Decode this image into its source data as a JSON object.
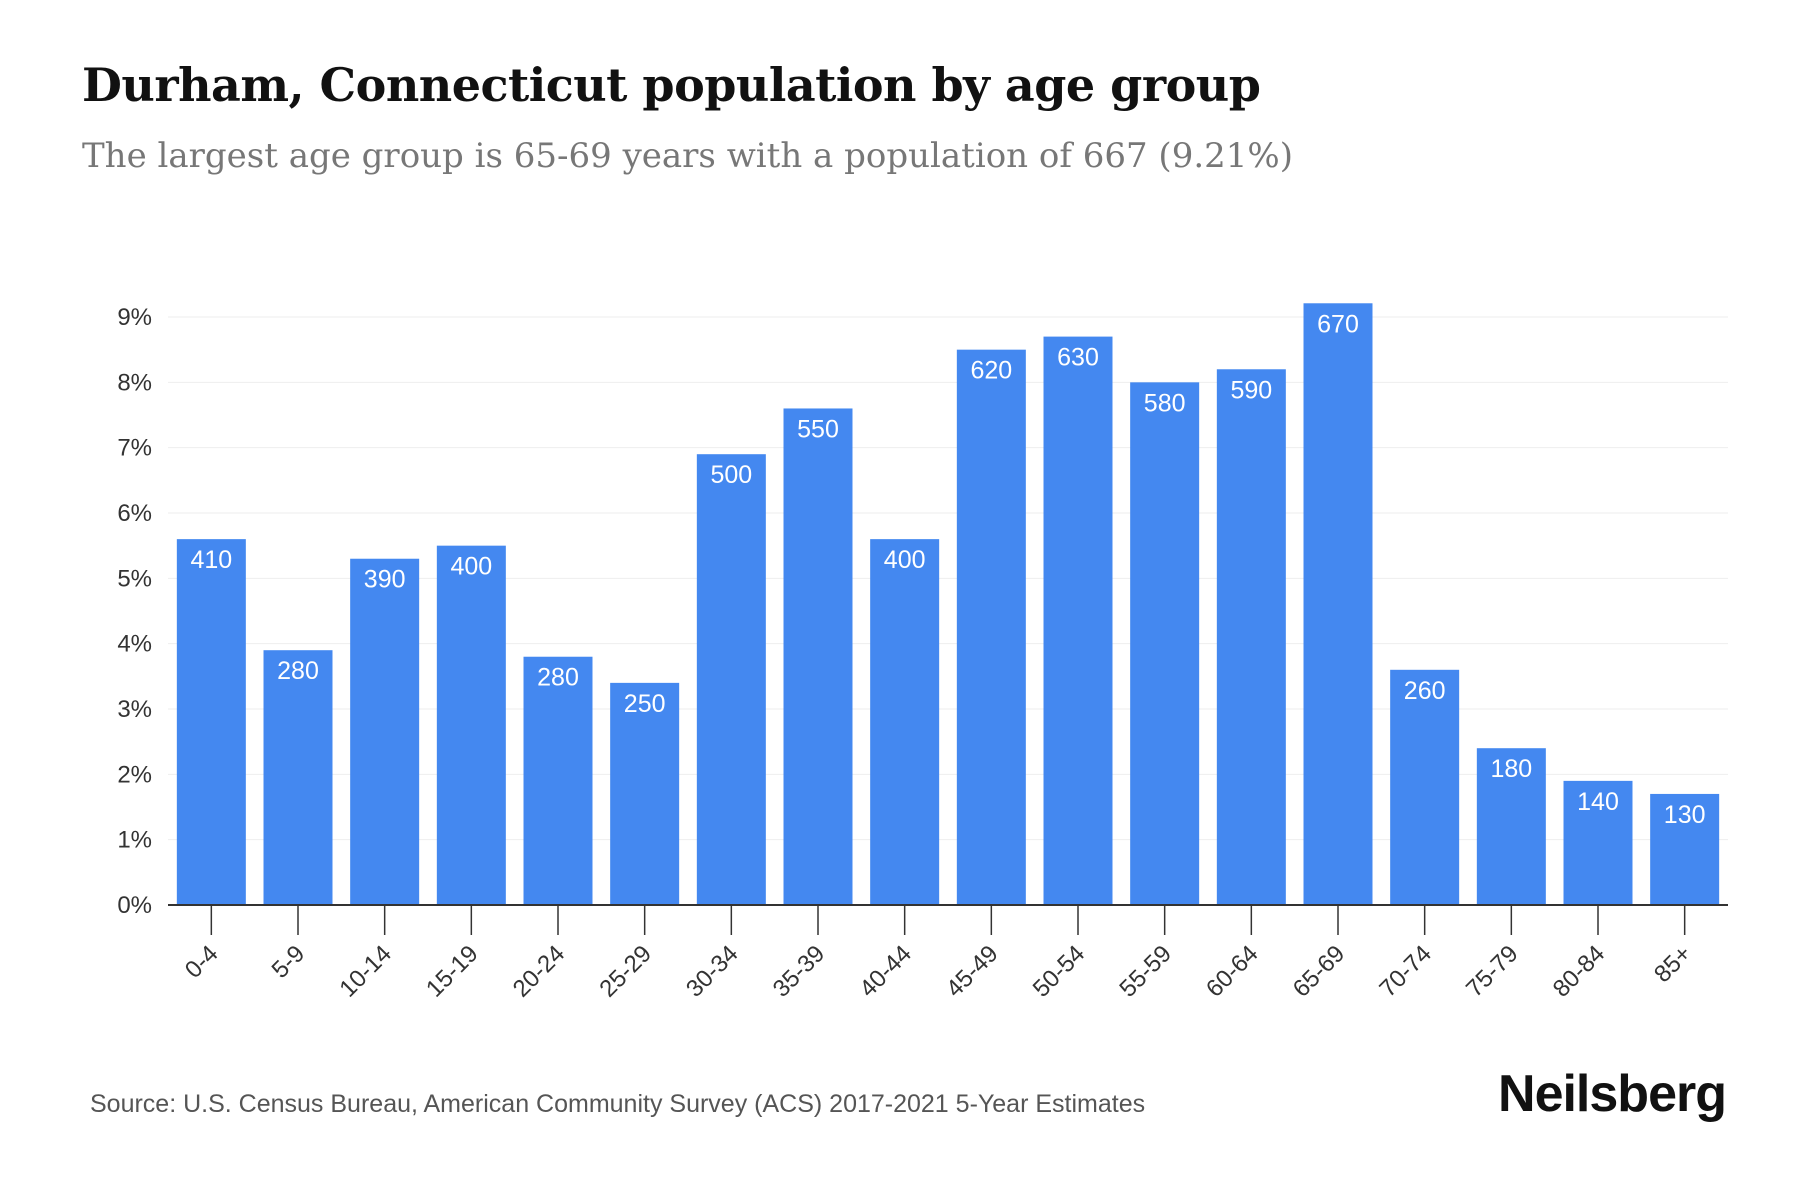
{
  "header": {
    "title": "Durham, Connecticut population by age group",
    "subtitle": "The largest age group is 65-69 years with a population of 667 (9.21%)"
  },
  "footer": {
    "source": "Source: U.S. Census Bureau, American Community Survey (ACS) 2017-2021 5-Year Estimates",
    "brand": "Neilsberg"
  },
  "colors": {
    "bar": "#4488f0",
    "bar_label": "#ffffff",
    "grid": "#eeeeee",
    "axis": "#333333",
    "tick_text": "#333333"
  },
  "chart_data": {
    "type": "bar",
    "title": "Durham, Connecticut population by age group",
    "subtitle": "The largest age group is 65-69 years with a population of 667 (9.21%)",
    "xlabel": "",
    "ylabel": "",
    "categories": [
      "0-4",
      "5-9",
      "10-14",
      "15-19",
      "20-24",
      "25-29",
      "30-34",
      "35-39",
      "40-44",
      "45-49",
      "50-54",
      "55-59",
      "60-64",
      "65-69",
      "70-74",
      "75-79",
      "80-84",
      "85+"
    ],
    "values": [
      5.6,
      3.9,
      5.3,
      5.5,
      3.8,
      3.4,
      6.9,
      7.6,
      5.6,
      8.5,
      8.7,
      8.0,
      8.2,
      9.21,
      3.6,
      2.4,
      1.9,
      1.7
    ],
    "data_labels": [
      "410",
      "280",
      "390",
      "400",
      "280",
      "250",
      "500",
      "550",
      "400",
      "620",
      "630",
      "580",
      "590",
      "670",
      "260",
      "180",
      "140",
      "130"
    ],
    "ylim": [
      0,
      9
    ],
    "yticks": [
      0,
      1,
      2,
      3,
      4,
      5,
      6,
      7,
      8,
      9
    ],
    "ytick_labels": [
      "0%",
      "1%",
      "2%",
      "3%",
      "4%",
      "5%",
      "6%",
      "7%",
      "8%",
      "9%"
    ],
    "grid": true,
    "legend": "none"
  }
}
